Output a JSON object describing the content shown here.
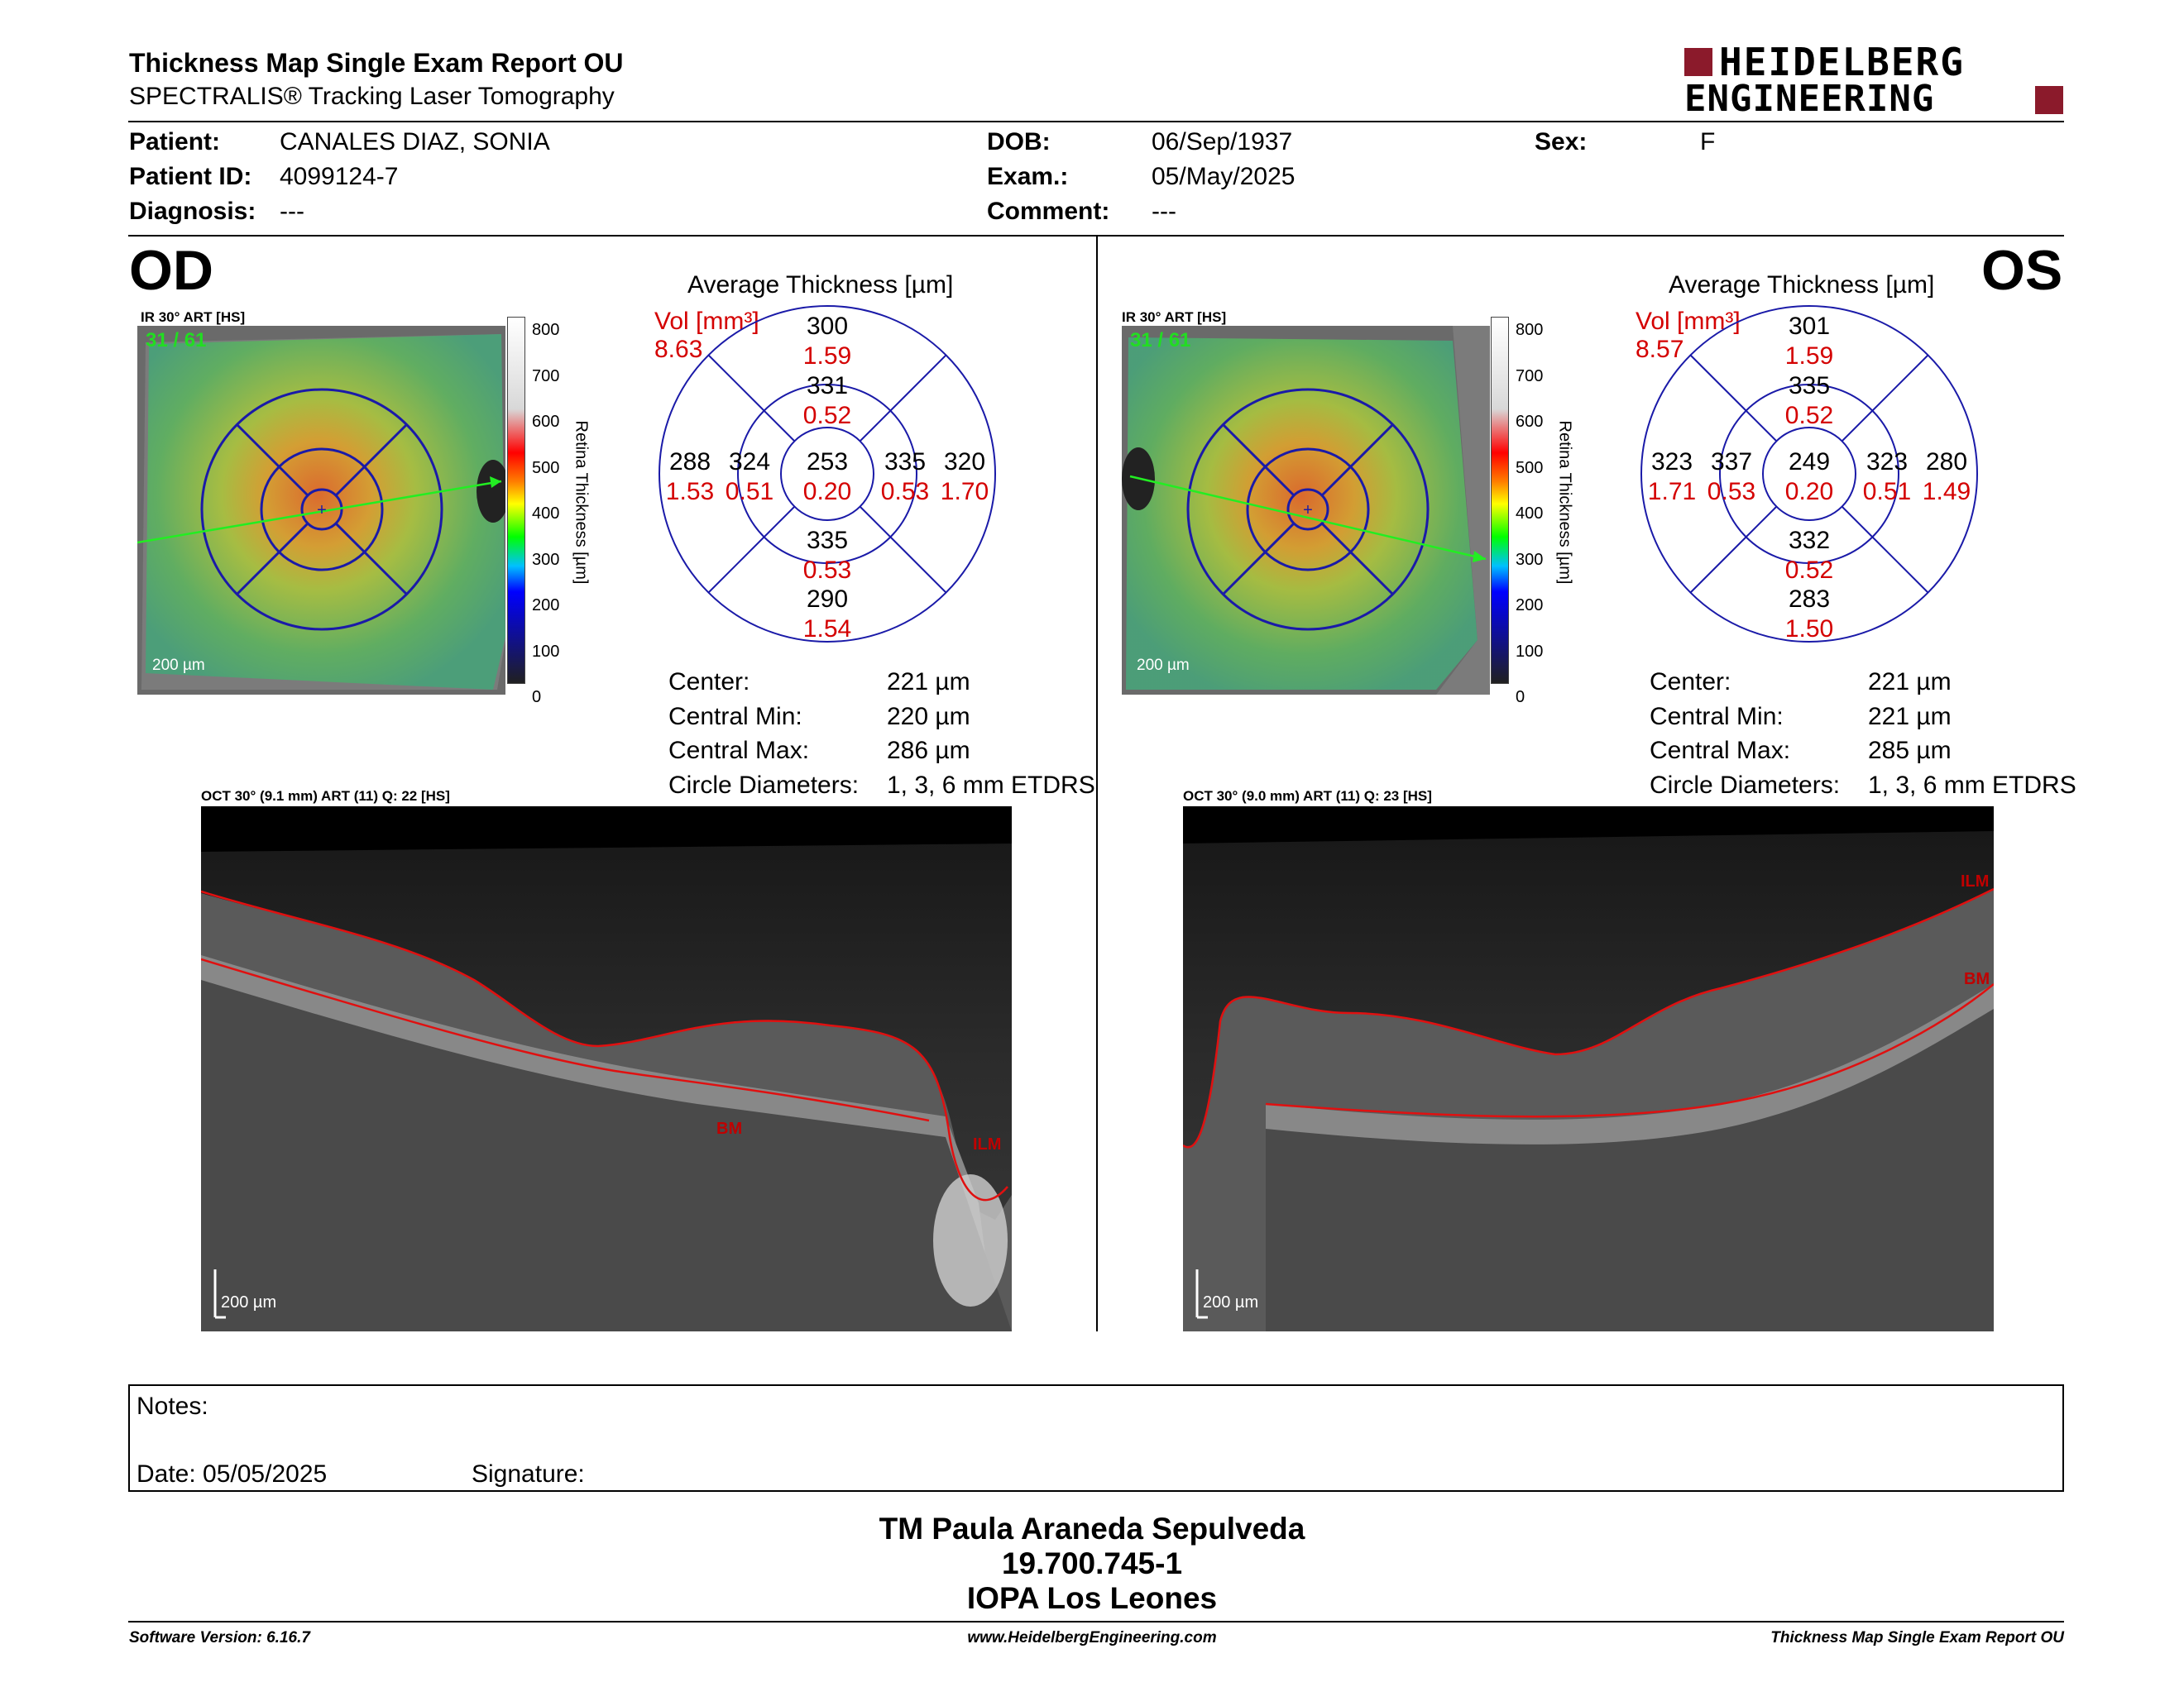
{
  "header": {
    "title": "Thickness Map Single Exam Report OU",
    "subtitle": "SPECTRALIS® Tracking Laser Tomography",
    "logo_line1": "HEIDELBERG",
    "logo_line2": "ENGINEERING",
    "brand_color": "#8b1a2b"
  },
  "patient": {
    "patient_label": "Patient:",
    "patient": "CANALES DIAZ, SONIA",
    "id_label": "Patient ID:",
    "id": "4099124-7",
    "diagnosis_label": "Diagnosis:",
    "diagnosis": "---",
    "dob_label": "DOB:",
    "dob": "06/Sep/1937",
    "exam_label": "Exam.:",
    "exam": "05/May/2025",
    "comment_label": "Comment:",
    "comment": "---",
    "sex_label": "Sex:",
    "sex": "F"
  },
  "od": {
    "eye": "OD",
    "ir_label": "IR 30° ART [HS]",
    "ir_counter": "31 / 61",
    "scale": "200 µm",
    "colorbar_ticks": [
      "800",
      "700",
      "600",
      "500",
      "400",
      "300",
      "200",
      "100",
      "0"
    ],
    "colorbar_label": "Retina Thickness [µm]",
    "avg_title": "Average Thickness [µm]",
    "vol_label": "Vol [mm³]",
    "vol": "8.63",
    "etdrs": {
      "center_t": "253",
      "center_v": "0.20",
      "inner_sup_t": "331",
      "inner_sup_v": "0.52",
      "inner_inf_t": "335",
      "inner_inf_v": "0.53",
      "inner_left_t": "324",
      "inner_left_v": "0.51",
      "inner_right_t": "335",
      "inner_right_v": "0.53",
      "outer_sup_t": "300",
      "outer_sup_v": "1.59",
      "outer_inf_t": "290",
      "outer_inf_v": "1.54",
      "outer_left_t": "288",
      "outer_left_v": "1.53",
      "outer_right_t": "320",
      "outer_right_v": "1.70"
    },
    "stats": [
      {
        "label": "Center:",
        "value": "221 µm"
      },
      {
        "label": "Central Min:",
        "value": "220 µm"
      },
      {
        "label": "Central Max:",
        "value": "286 µm"
      },
      {
        "label": "Circle Diameters:",
        "value": "1, 3, 6 mm ETDRS"
      }
    ],
    "oct_label": "OCT 30° (9.1 mm) ART (11) Q: 22 [HS]",
    "oct_scale": "200 µm",
    "bm": "BM",
    "ilm": "ILM"
  },
  "os": {
    "eye": "OS",
    "ir_label": "IR 30° ART [HS]",
    "ir_counter": "31 / 61",
    "scale": "200 µm",
    "colorbar_ticks": [
      "800",
      "700",
      "600",
      "500",
      "400",
      "300",
      "200",
      "100",
      "0"
    ],
    "colorbar_label": "Retina Thickness [µm]",
    "avg_title": "Average Thickness [µm]",
    "vol_label": "Vol [mm³]",
    "vol": "8.57",
    "etdrs": {
      "center_t": "249",
      "center_v": "0.20",
      "inner_sup_t": "335",
      "inner_sup_v": "0.52",
      "inner_inf_t": "332",
      "inner_inf_v": "0.52",
      "inner_left_t": "337",
      "inner_left_v": "0.53",
      "inner_right_t": "323",
      "inner_right_v": "0.51",
      "outer_sup_t": "301",
      "outer_sup_v": "1.59",
      "outer_inf_t": "283",
      "outer_inf_v": "1.50",
      "outer_left_t": "323",
      "outer_left_v": "1.71",
      "outer_right_t": "280",
      "outer_right_v": "1.49"
    },
    "stats": [
      {
        "label": "Center:",
        "value": "221 µm"
      },
      {
        "label": "Central Min:",
        "value": "221 µm"
      },
      {
        "label": "Central Max:",
        "value": "285 µm"
      },
      {
        "label": "Circle Diameters:",
        "value": "1, 3, 6 mm ETDRS"
      }
    ],
    "oct_label": "OCT 30° (9.0 mm) ART (11) Q: 23 [HS]",
    "oct_scale": "200 µm",
    "bm": "BM",
    "ilm": "ILM"
  },
  "notes": {
    "notes_label": "Notes:",
    "date_label": "Date: 05/05/2025",
    "signature_label": "Signature:"
  },
  "signature_block": {
    "line1": "TM Paula Araneda Sepulveda",
    "line2": "19.700.745-1",
    "line3": "IOPA Los Leones"
  },
  "footer": {
    "software": "Software Version: 6.16.7",
    "website": "www.HeidelbergEngineering.com",
    "report": "Thickness Map Single Exam Report OU"
  },
  "colors": {
    "ring": "#1a1aa8",
    "volume_red": "#d40000",
    "bm_red": "#c00000",
    "counter_green": "#22dd22"
  }
}
